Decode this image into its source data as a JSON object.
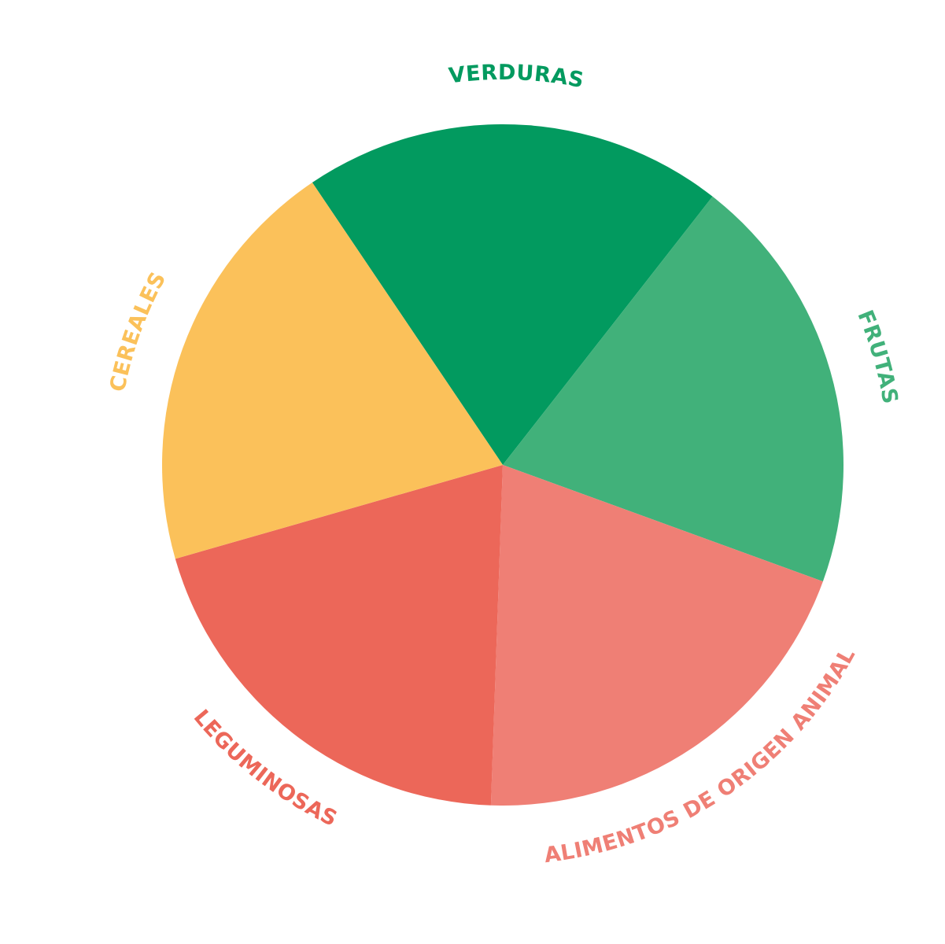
{
  "chart_data": {
    "type": "pie",
    "title": "",
    "legend": "none",
    "slices": [
      {
        "label": "VERDURAS",
        "value": 20,
        "color": "#029a5f"
      },
      {
        "label": "FRUTAS",
        "value": 20,
        "color": "#41b17a"
      },
      {
        "label": "ALIMENTOS DE ORIGEN ANIMAL",
        "value": 20,
        "color": "#ef7f75"
      },
      {
        "label": "LEGUMINOSAS",
        "value": 20,
        "color": "#ec6759"
      },
      {
        "label": "CEREALES",
        "value": 20,
        "color": "#fbc15a"
      }
    ]
  }
}
